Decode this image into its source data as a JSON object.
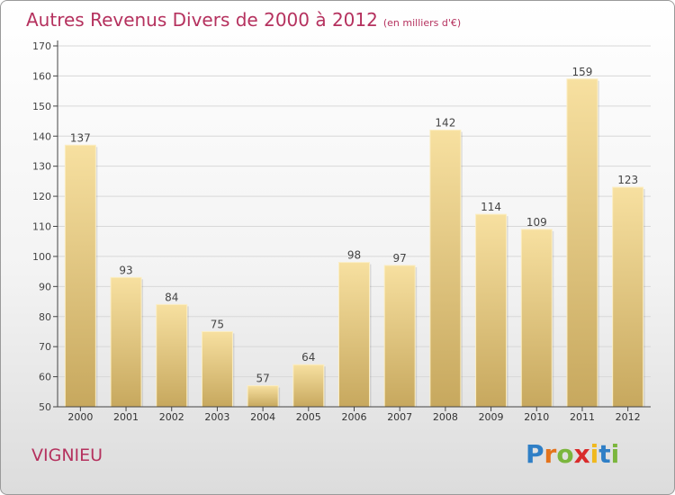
{
  "header": {
    "title": "Autres Revenus Divers de 2000 à 2012",
    "unit": "(en milliers d'€)"
  },
  "commune": "VIGNIEU",
  "logo": {
    "text": "Proxiti",
    "letters": [
      {
        "char": "P",
        "color": "#2f7fc6"
      },
      {
        "char": "r",
        "color": "#e4731b"
      },
      {
        "char": "o",
        "color": "#7bb63d"
      },
      {
        "char": "x",
        "color": "#d92b2b"
      },
      {
        "char": "i",
        "color": "#f0b91e"
      },
      {
        "char": "t",
        "color": "#2f7fc6"
      },
      {
        "char": "i",
        "color": "#7bb63d"
      }
    ]
  },
  "colors": {
    "title": "#b5315e",
    "bar_light": "#f7e0a0",
    "bar_dark": "#c7a85e",
    "axis": "#444444",
    "grid": "#d8d8d8"
  },
  "chart_data": {
    "type": "bar",
    "title": "Autres Revenus Divers de 2000 à 2012",
    "subtitle": "(en milliers d'€)",
    "categories": [
      "2000",
      "2001",
      "2002",
      "2003",
      "2004",
      "2005",
      "2006",
      "2007",
      "2008",
      "2009",
      "2010",
      "2011",
      "2012"
    ],
    "values": [
      137,
      93,
      84,
      75,
      57,
      64,
      98,
      97,
      142,
      114,
      109,
      159,
      123
    ],
    "ylim": [
      50,
      170
    ],
    "yticks": [
      50,
      60,
      70,
      80,
      90,
      100,
      110,
      120,
      130,
      140,
      150,
      160,
      170
    ],
    "grid": true,
    "data_labels": true
  }
}
